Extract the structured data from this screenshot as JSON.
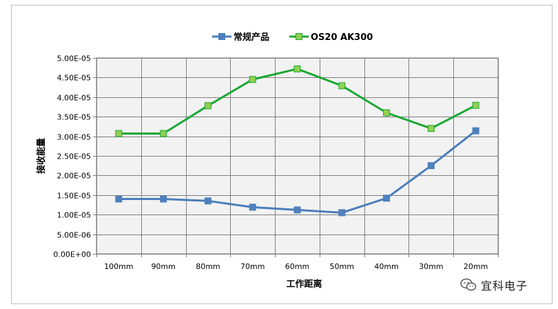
{
  "chart_data": {
    "type": "line",
    "categories": [
      "100mm",
      "90mm",
      "80mm",
      "70mm",
      "60mm",
      "50mm",
      "40mm",
      "30mm",
      "20mm"
    ],
    "series": [
      {
        "name": "常规产品",
        "color": "#4a7ebb",
        "marker_fill": "#4f81bd",
        "values": [
          1.4e-05,
          1.4e-05,
          1.35e-05,
          1.19e-05,
          1.12e-05,
          1.05e-05,
          1.42e-05,
          2.25e-05,
          3.14e-05
        ]
      },
      {
        "name": "OS20 AK300",
        "color": "#1aa832",
        "marker_fill": "#92d050",
        "values": [
          3.07e-05,
          3.07e-05,
          3.78e-05,
          4.45e-05,
          4.72e-05,
          4.29e-05,
          3.6e-05,
          3.2e-05,
          3.79e-05
        ]
      }
    ],
    "ylim": [
      0,
      5e-05
    ],
    "y_ticks": [
      {
        "value": 0,
        "label": "0.00E+00"
      },
      {
        "value": 5e-06,
        "label": "5.00E-06"
      },
      {
        "value": 1e-05,
        "label": "1.00E-05"
      },
      {
        "value": 1.5e-05,
        "label": "1.50E-05"
      },
      {
        "value": 2e-05,
        "label": "2.00E-05"
      },
      {
        "value": 2.5e-05,
        "label": "2.50E-05"
      },
      {
        "value": 3e-05,
        "label": "3.00E-05"
      },
      {
        "value": 3.5e-05,
        "label": "3.50E-05"
      },
      {
        "value": 4e-05,
        "label": "4.00E-05"
      },
      {
        "value": 4.5e-05,
        "label": "4.50E-05"
      },
      {
        "value": 5e-05,
        "label": "5.00E-05"
      }
    ],
    "xlabel": "工作距离",
    "ylabel": "接收能量",
    "grid": true,
    "plot_background": "#f2f2f2",
    "legend_position": "top-center"
  },
  "watermark": {
    "text": "宜科电子",
    "icon": "wechat-icon"
  }
}
